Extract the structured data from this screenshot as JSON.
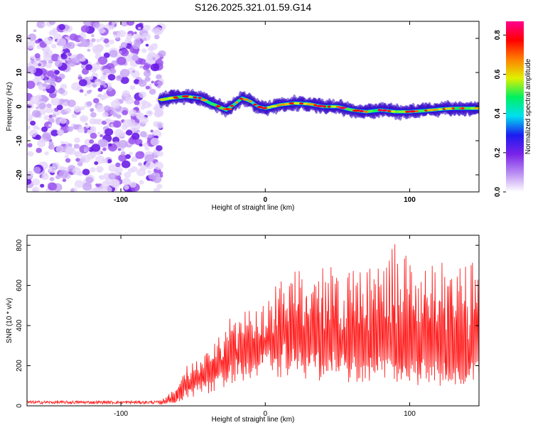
{
  "title": "S126.2025.321.01.59.G14",
  "chart_data": [
    {
      "type": "heatmap",
      "xlabel": "Height of straight line (km)",
      "ylabel": "Frequency (Hz)",
      "xlim": [
        -165,
        148
      ],
      "ylim": [
        -25,
        25
      ],
      "xticks": [
        -100,
        0,
        100
      ],
      "yticks": [
        -20,
        -10,
        0,
        10,
        20
      ],
      "grid": false,
      "colorbar": {
        "label": "Normalized spectral amplitude",
        "range": [
          0.0,
          0.87
        ],
        "ticks": [
          0.0,
          0.2,
          0.4,
          0.6,
          0.8
        ],
        "tick_labels": [
          "0.0",
          "0.2",
          "0.4",
          "0.6",
          "0.8"
        ],
        "colormap": [
          "#ffffff",
          "#b98cf2",
          "#7a22e8",
          "#1c1cf0",
          "#00e0f0",
          "#00f060",
          "#e0f000",
          "#ff8000",
          "#ff0000",
          "#ff0090"
        ]
      },
      "regions": {
        "noise_x_range": [
          -165,
          -73
        ],
        "signal_onset_x": -73
      },
      "ridge": {
        "x": [
          -72,
          -65,
          -55,
          -45,
          -38,
          -32,
          -27,
          -22,
          -16,
          -10,
          -5,
          0,
          10,
          20,
          30,
          40,
          50,
          60,
          70,
          80,
          90,
          100,
          110,
          120,
          130,
          140,
          148
        ],
        "frequency": [
          2,
          2.5,
          3,
          2.5,
          1,
          0,
          -1,
          0.5,
          2.5,
          1.5,
          0,
          -0.5,
          0.5,
          1,
          0.8,
          0,
          0,
          -1,
          -1.5,
          -1,
          -1.5,
          -1.5,
          -1.2,
          -0.8,
          -0.5,
          -0.5,
          -0.5
        ]
      }
    },
    {
      "type": "line",
      "xlabel": "Height of straight line (km)",
      "ylabel": "SNR (10 * v/v)",
      "xlim": [
        -165,
        148
      ],
      "ylim": [
        0,
        850
      ],
      "xticks": [
        -100,
        0,
        100
      ],
      "yticks": [
        0,
        200,
        400,
        600,
        800
      ],
      "color": "#ff2020",
      "grid": false,
      "envelope": {
        "x": [
          -165,
          -73,
          -62,
          -55,
          -45,
          -35,
          -25,
          -15,
          -5,
          5,
          20,
          35,
          50,
          65,
          80,
          90,
          100,
          115,
          130,
          140,
          148
        ],
        "baseline": [
          10,
          10,
          20,
          60,
          80,
          120,
          160,
          200,
          200,
          230,
          230,
          200,
          200,
          180,
          180,
          180,
          180,
          160,
          150,
          120,
          250
        ],
        "peak": [
          25,
          25,
          100,
          200,
          240,
          310,
          440,
          480,
          470,
          580,
          690,
          700,
          690,
          700,
          720,
          845,
          720,
          720,
          720,
          700,
          750
        ]
      }
    }
  ]
}
